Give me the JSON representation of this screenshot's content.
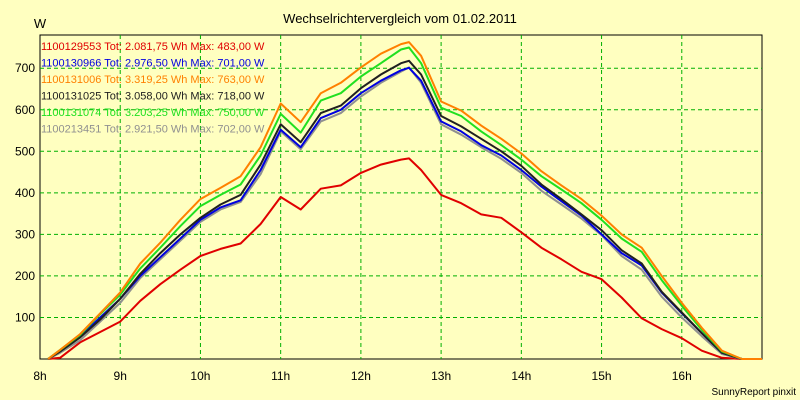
{
  "chart_data": {
    "type": "line",
    "title": "Wechselrichtervergleich vom 01.02.2011",
    "ylabel": "W",
    "xlabel": "",
    "xlim": [
      8,
      17
    ],
    "ylim": [
      0,
      780
    ],
    "x_ticks": [
      {
        "value": 8,
        "label": "8h"
      },
      {
        "value": 9,
        "label": "9h"
      },
      {
        "value": 10,
        "label": "10h"
      },
      {
        "value": 11,
        "label": "11h"
      },
      {
        "value": 12,
        "label": "12h"
      },
      {
        "value": 13,
        "label": "13h"
      },
      {
        "value": 14,
        "label": "14h"
      },
      {
        "value": 15,
        "label": "15h"
      },
      {
        "value": 16,
        "label": "16h"
      }
    ],
    "y_ticks": [
      100,
      200,
      300,
      400,
      500,
      600,
      700
    ],
    "grid": true,
    "legend_position": "top-left",
    "footer": "SunnyReport pinxit",
    "x": [
      8.1,
      8.25,
      8.5,
      8.75,
      9.0,
      9.25,
      9.5,
      9.75,
      10.0,
      10.25,
      10.5,
      10.75,
      11.0,
      11.25,
      11.5,
      11.75,
      12.0,
      12.25,
      12.5,
      12.6,
      12.75,
      13.0,
      13.25,
      13.5,
      13.75,
      14.0,
      14.25,
      14.5,
      14.75,
      15.0,
      15.25,
      15.5,
      15.75,
      16.0,
      16.25,
      16.5,
      16.75,
      17.0
    ],
    "series": [
      {
        "name": "1100129553",
        "legend": "1100129553 Tot: 2.081,75 Wh Max: 483,00 W",
        "color": "#e00000",
        "values": [
          0,
          3,
          40,
          65,
          90,
          140,
          180,
          215,
          248,
          265,
          278,
          325,
          390,
          360,
          410,
          418,
          448,
          468,
          480,
          483,
          455,
          395,
          375,
          348,
          340,
          305,
          268,
          240,
          210,
          192,
          148,
          98,
          72,
          50,
          20,
          3,
          0,
          0
        ]
      },
      {
        "name": "1100130966",
        "legend": "1100130966 Tot: 2.976,50 Wh Max: 701,00 W",
        "color": "#0000e0",
        "values": [
          0,
          20,
          55,
          100,
          145,
          200,
          245,
          290,
          335,
          365,
          382,
          455,
          552,
          510,
          580,
          600,
          640,
          670,
          695,
          701,
          670,
          572,
          548,
          515,
          490,
          455,
          415,
          380,
          345,
          300,
          255,
          225,
          160,
          110,
          62,
          15,
          0,
          0
        ]
      },
      {
        "name": "1100131006",
        "legend": "1100131006 Tot: 3.319,25 Wh Max: 763,00 W",
        "color": "#ff8000",
        "values": [
          0,
          22,
          60,
          110,
          160,
          230,
          280,
          335,
          385,
          412,
          440,
          510,
          615,
          570,
          640,
          665,
          702,
          735,
          758,
          763,
          730,
          620,
          598,
          562,
          530,
          495,
          452,
          418,
          385,
          345,
          300,
          268,
          200,
          135,
          75,
          20,
          0,
          0
        ]
      },
      {
        "name": "1100131025",
        "legend": "1100131025 Tot: 3.058,00 Wh Max: 718,00 W",
        "color": "#202020",
        "values": [
          0,
          18,
          52,
          95,
          145,
          205,
          255,
          300,
          340,
          372,
          395,
          468,
          565,
          522,
          592,
          610,
          652,
          685,
          712,
          718,
          685,
          585,
          560,
          530,
          500,
          465,
          420,
          385,
          348,
          310,
          262,
          230,
          162,
          112,
          62,
          15,
          0,
          0
        ]
      },
      {
        "name": "1100131074",
        "legend": "1100131074 Tot: 3.203,25 Wh Max: 750,00 W",
        "color": "#20e020",
        "values": [
          0,
          22,
          58,
          108,
          155,
          218,
          268,
          320,
          368,
          395,
          420,
          490,
          590,
          545,
          622,
          640,
          680,
          712,
          745,
          750,
          712,
          605,
          585,
          548,
          515,
          480,
          440,
          408,
          375,
          335,
          290,
          258,
          190,
          128,
          70,
          18,
          0,
          0
        ]
      },
      {
        "name": "1100213451",
        "legend": "1100213451 Tot: 2.921,50 Wh Max: 702,00 W",
        "color": "#909090",
        "values": [
          0,
          15,
          45,
          90,
          135,
          195,
          240,
          285,
          330,
          360,
          378,
          445,
          548,
          505,
          572,
          592,
          632,
          665,
          692,
          702,
          665,
          565,
          540,
          510,
          482,
          448,
          405,
          372,
          338,
          298,
          248,
          215,
          150,
          100,
          55,
          12,
          0,
          0
        ]
      }
    ]
  }
}
